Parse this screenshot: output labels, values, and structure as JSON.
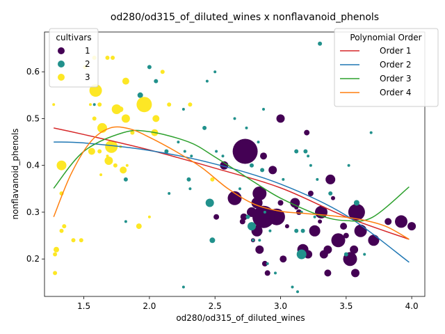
{
  "chart_data": {
    "type": "scatter",
    "title": "od280/od315_of_diluted_wines x nonflavanoid_phenols",
    "xlabel": "od280/od315_of_diluted_wines",
    "ylabel": "nonflavanoid_phenols",
    "xlim": [
      1.2,
      4.1
    ],
    "ylim": [
      0.12,
      0.685
    ],
    "xticks": [
      "1.5",
      "2.0",
      "2.5",
      "3.0",
      "3.5",
      "4.0"
    ],
    "xtick_values": [
      1.5,
      2.0,
      2.5,
      3.0,
      3.5,
      4.0
    ],
    "yticks": [
      "0.2",
      "0.3",
      "0.4",
      "0.5",
      "0.6"
    ],
    "ytick_values": [
      0.2,
      0.3,
      0.4,
      0.5,
      0.6
    ],
    "grid": false,
    "cultivar_legend": {
      "title": "cultivars",
      "placement": "top-left",
      "entries": [
        {
          "label": "1",
          "color": "#440154"
        },
        {
          "label": "2",
          "color": "#21918c"
        },
        {
          "label": "3",
          "color": "#fde725"
        }
      ]
    },
    "fit_legend": {
      "title": "Polynomial Order",
      "placement": "top-right",
      "entries": [
        {
          "label": "Order 1",
          "color": "#d62728"
        },
        {
          "label": "Order 2",
          "color": "#1f77b4"
        },
        {
          "label": "Order 3",
          "color": "#2ca02c"
        },
        {
          "label": "Order 4",
          "color": "#ff7f0e"
        }
      ]
    },
    "fit_curves": [
      {
        "name": "Order 1",
        "color": "#d62728",
        "points": [
          [
            1.27,
            0.48
          ],
          [
            1.5,
            0.466
          ],
          [
            2.0,
            0.433
          ],
          [
            2.5,
            0.394
          ],
          [
            3.0,
            0.352
          ],
          [
            3.5,
            0.29
          ],
          [
            3.98,
            0.242
          ]
        ]
      },
      {
        "name": "Order 2",
        "color": "#1f77b4",
        "points": [
          [
            1.27,
            0.45
          ],
          [
            1.5,
            0.448
          ],
          [
            2.0,
            0.432
          ],
          [
            2.5,
            0.403
          ],
          [
            3.0,
            0.36
          ],
          [
            3.5,
            0.293
          ],
          [
            3.98,
            0.193
          ]
        ]
      },
      {
        "name": "Order 3",
        "color": "#2ca02c",
        "points": [
          [
            1.27,
            0.351
          ],
          [
            1.5,
            0.43
          ],
          [
            1.8,
            0.47
          ],
          [
            2.0,
            0.472
          ],
          [
            2.3,
            0.45
          ],
          [
            2.5,
            0.418
          ],
          [
            2.8,
            0.364
          ],
          [
            3.0,
            0.33
          ],
          [
            3.3,
            0.293
          ],
          [
            3.5,
            0.282
          ],
          [
            3.7,
            0.289
          ],
          [
            3.98,
            0.354
          ]
        ]
      },
      {
        "name": "Order 4",
        "color": "#ff7f0e",
        "points": [
          [
            1.27,
            0.29
          ],
          [
            1.4,
            0.38
          ],
          [
            1.55,
            0.45
          ],
          [
            1.7,
            0.48
          ],
          [
            1.85,
            0.478
          ],
          [
            2.0,
            0.46
          ],
          [
            2.2,
            0.43
          ],
          [
            2.4,
            0.395
          ],
          [
            2.6,
            0.35
          ],
          [
            2.8,
            0.317
          ],
          [
            3.0,
            0.302
          ],
          [
            3.2,
            0.297
          ],
          [
            3.4,
            0.292
          ],
          [
            3.6,
            0.285
          ],
          [
            3.8,
            0.27
          ],
          [
            3.98,
            0.242
          ]
        ]
      }
    ],
    "series": [
      {
        "name": "1",
        "color": "#440154",
        "points": [
          [
            2.73,
            0.43,
            18
          ],
          [
            2.84,
            0.34,
            10
          ],
          [
            2.97,
            0.29,
            12
          ],
          [
            2.87,
            0.29,
            16
          ],
          [
            3.44,
            0.24,
            10
          ],
          [
            3.53,
            0.2,
            10
          ],
          [
            3.58,
            0.3,
            12
          ],
          [
            3.31,
            0.3,
            9
          ],
          [
            3.17,
            0.22,
            8
          ],
          [
            3.92,
            0.28,
            9
          ],
          [
            2.65,
            0.33,
            10
          ],
          [
            2.82,
            0.32,
            8
          ],
          [
            3.11,
            0.32,
            7
          ],
          [
            3.38,
            0.37,
            7
          ],
          [
            3.61,
            0.26,
            9
          ],
          [
            3.71,
            0.24,
            8
          ],
          [
            4.0,
            0.27,
            6
          ],
          [
            3.57,
            0.17,
            6
          ],
          [
            3.33,
            0.21,
            6
          ],
          [
            3.26,
            0.26,
            8
          ],
          [
            3.36,
            0.22,
            6
          ],
          [
            3.0,
            0.5,
            6
          ],
          [
            2.94,
            0.39,
            6
          ],
          [
            2.87,
            0.42,
            5
          ],
          [
            2.57,
            0.4,
            6
          ],
          [
            2.84,
            0.22,
            6
          ],
          [
            2.82,
            0.26,
            8
          ],
          [
            2.72,
            0.29,
            5
          ],
          [
            2.78,
            0.3,
            7
          ],
          [
            2.91,
            0.28,
            5
          ],
          [
            3.02,
            0.2,
            5
          ],
          [
            3.21,
            0.21,
            6
          ],
          [
            3.36,
            0.17,
            5
          ],
          [
            3.23,
            0.34,
            4
          ],
          [
            3.14,
            0.3,
            4
          ],
          [
            3.48,
            0.27,
            5
          ],
          [
            3.56,
            0.22,
            6
          ],
          [
            3.0,
            0.32,
            4
          ],
          [
            2.71,
            0.28,
            4
          ],
          [
            2.51,
            0.29,
            4
          ],
          [
            3.82,
            0.28,
            5
          ],
          [
            2.9,
            0.17,
            4
          ],
          [
            3.2,
            0.47,
            4
          ],
          [
            3.5,
            0.25,
            4
          ],
          [
            2.88,
            0.19,
            4
          ],
          [
            3.3,
            0.28,
            3
          ],
          [
            3.12,
            0.31,
            3
          ],
          [
            3.4,
            0.33,
            3
          ],
          [
            2.79,
            0.24,
            3
          ],
          [
            3.05,
            0.27,
            3
          ]
        ]
      },
      {
        "name": "2",
        "color": "#21918c",
        "points": [
          [
            3.16,
            0.21,
            7
          ],
          [
            2.78,
            0.27,
            6
          ],
          [
            2.46,
            0.32,
            6
          ],
          [
            1.93,
            0.55,
            4
          ],
          [
            2.48,
            0.24,
            4
          ],
          [
            3.58,
            0.32,
            4
          ],
          [
            2.42,
            0.48,
            3
          ],
          [
            2.0,
            0.61,
            3
          ],
          [
            2.05,
            0.58,
            3
          ],
          [
            2.13,
            0.43,
            3
          ],
          [
            2.26,
            0.52,
            2
          ],
          [
            2.3,
            0.37,
            3
          ],
          [
            2.22,
            0.45,
            2
          ],
          [
            2.78,
            0.4,
            3
          ],
          [
            2.86,
            0.39,
            3
          ],
          [
            3.12,
            0.43,
            3
          ],
          [
            3.19,
            0.43,
            3
          ],
          [
            3.21,
            0.42,
            2
          ],
          [
            3.28,
            0.37,
            2
          ],
          [
            3.23,
            0.4,
            2
          ],
          [
            2.83,
            0.45,
            2
          ],
          [
            2.87,
            0.52,
            2
          ],
          [
            2.65,
            0.5,
            2
          ],
          [
            2.51,
            0.43,
            2
          ],
          [
            2.56,
            0.42,
            2
          ],
          [
            2.74,
            0.48,
            2
          ],
          [
            1.82,
            0.37,
            3
          ],
          [
            1.82,
            0.28,
            2
          ],
          [
            2.31,
            0.35,
            2
          ],
          [
            2.69,
            0.35,
            2
          ],
          [
            3.09,
            0.14,
            2
          ],
          [
            3.13,
            0.13,
            2
          ],
          [
            3.12,
            0.26,
            3
          ],
          [
            3.17,
            0.26,
            3
          ],
          [
            3.16,
            0.3,
            2
          ],
          [
            3.5,
            0.21,
            3
          ],
          [
            3.52,
            0.4,
            2
          ],
          [
            3.69,
            0.47,
            2
          ],
          [
            3.3,
            0.66,
            3
          ],
          [
            2.5,
            0.6,
            2
          ],
          [
            2.44,
            0.58,
            2
          ],
          [
            2.26,
            0.14,
            2
          ],
          [
            2.79,
            0.24,
            2
          ],
          [
            2.84,
            0.24,
            2
          ],
          [
            2.88,
            0.3,
            2
          ],
          [
            2.96,
            0.17,
            2
          ],
          [
            3.02,
            0.37,
            2
          ],
          [
            2.15,
            0.34,
            2
          ],
          [
            2.32,
            0.42,
            2
          ],
          [
            1.58,
            0.53,
            2
          ],
          [
            2.75,
            0.29,
            3
          ],
          [
            2.92,
            0.26,
            2
          ],
          [
            3.38,
            0.34,
            3
          ],
          [
            3.64,
            0.21,
            2
          ],
          [
            2.9,
            0.19,
            2
          ],
          [
            1.68,
            0.63,
            2
          ],
          [
            3.26,
            0.29,
            2
          ],
          [
            2.27,
            0.43,
            2
          ]
        ]
      },
      {
        "name": "3",
        "color": "#fde725",
        "points": [
          [
            1.96,
            0.53,
            11
          ],
          [
            1.59,
            0.56,
            9
          ],
          [
            1.71,
            0.44,
            9
          ],
          [
            1.33,
            0.4,
            7
          ],
          [
            1.75,
            0.52,
            7
          ],
          [
            1.64,
            0.48,
            7
          ],
          [
            1.69,
            0.41,
            6
          ],
          [
            1.82,
            0.5,
            6
          ],
          [
            2.05,
            0.5,
            5
          ],
          [
            1.8,
            0.39,
            5
          ],
          [
            1.82,
            0.58,
            5
          ],
          [
            1.56,
            0.43,
            5
          ],
          [
            2.04,
            0.47,
            5
          ],
          [
            1.78,
            0.52,
            4
          ],
          [
            1.92,
            0.27,
            4
          ],
          [
            1.29,
            0.22,
            4
          ],
          [
            1.35,
            0.27,
            3
          ],
          [
            1.48,
            0.24,
            3
          ],
          [
            1.42,
            0.24,
            3
          ],
          [
            1.33,
            0.26,
            3
          ],
          [
            1.33,
            0.34,
            3
          ],
          [
            1.28,
            0.17,
            3
          ],
          [
            1.28,
            0.21,
            3
          ],
          [
            1.58,
            0.5,
            3
          ],
          [
            1.62,
            0.53,
            3
          ],
          [
            1.68,
            0.63,
            3
          ],
          [
            1.72,
            0.63,
            3
          ],
          [
            1.58,
            0.63,
            3
          ],
          [
            2.1,
            0.6,
            3
          ],
          [
            2.15,
            0.53,
            3
          ],
          [
            2.31,
            0.53,
            3
          ],
          [
            2.48,
            0.37,
            3
          ],
          [
            1.87,
            0.47,
            3
          ],
          [
            1.74,
            0.4,
            3
          ],
          [
            1.51,
            0.61,
            3
          ],
          [
            1.27,
            0.53,
            2
          ],
          [
            2.0,
            0.29,
            2
          ],
          [
            1.62,
            0.43,
            3
          ],
          [
            1.83,
            0.4,
            2
          ],
          [
            1.63,
            0.38,
            2
          ],
          [
            1.55,
            0.53,
            2
          ],
          [
            1.68,
            0.42,
            2
          ],
          [
            1.78,
            0.44,
            2
          ]
        ]
      }
    ]
  }
}
